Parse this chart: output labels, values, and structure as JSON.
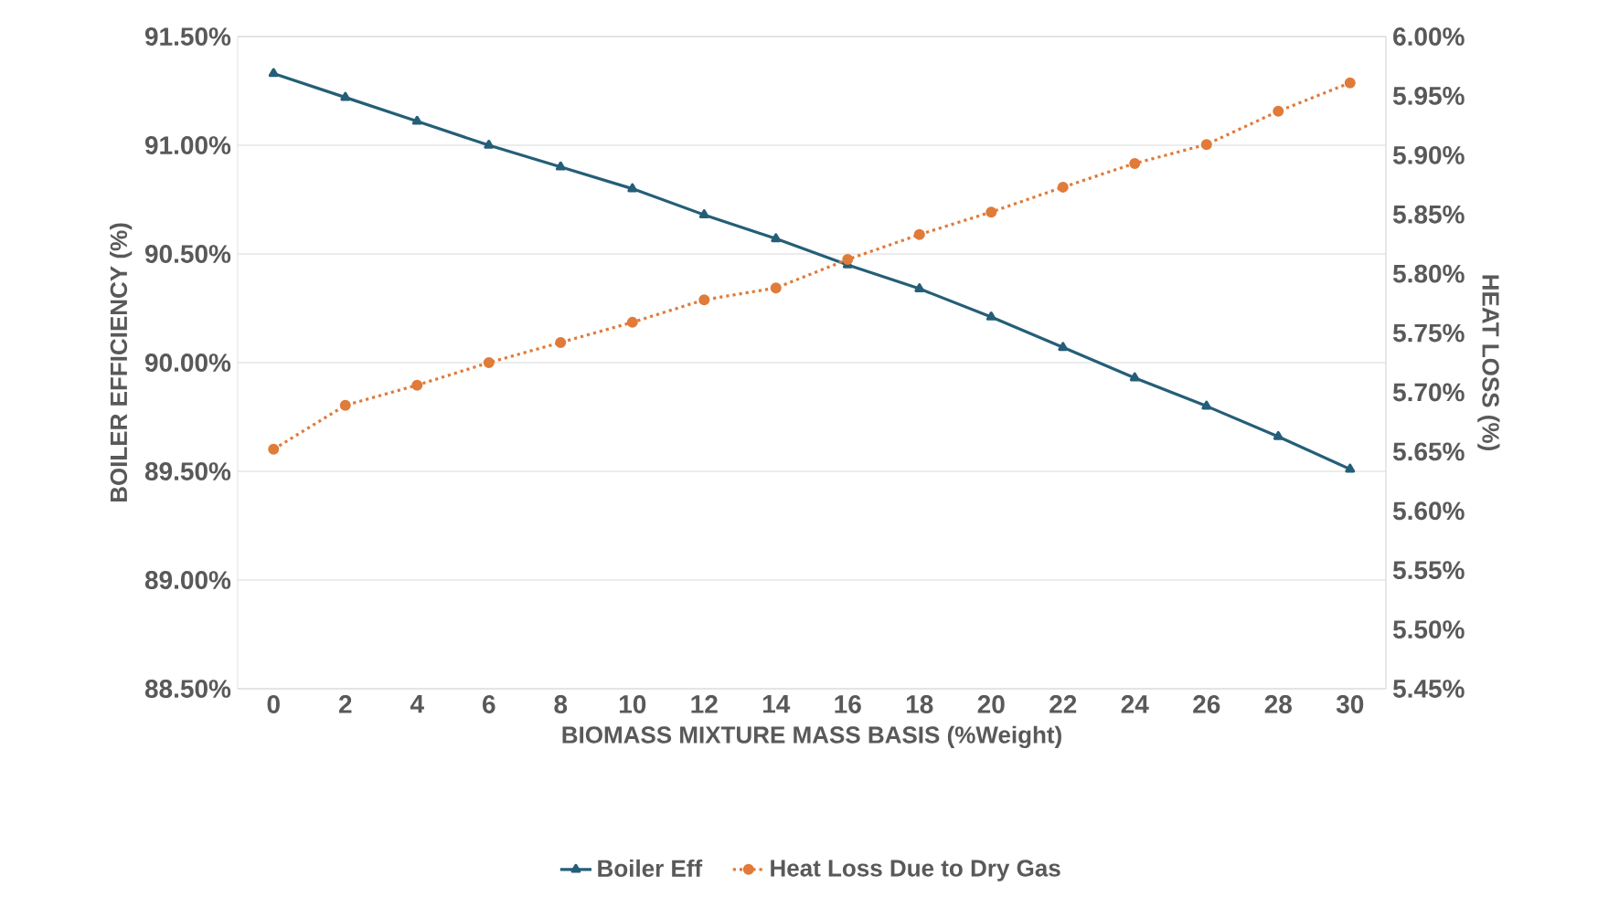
{
  "chart_data": {
    "type": "line",
    "xlabel": "BIOMASS MIXTURE MASS BASIS (%Weight)",
    "ylabel": "BOILER EFFICIENCY (%)",
    "y2label": "HEAT LOSS (%)",
    "categories": [
      "0",
      "2",
      "4",
      "6",
      "8",
      "10",
      "12",
      "14",
      "16",
      "18",
      "20",
      "22",
      "24",
      "26",
      "28",
      "30"
    ],
    "series": [
      {
        "name": "Boiler Eff",
        "color": "#255e78",
        "marker": "triangle",
        "line_style": "solid",
        "values": [
          91.33,
          91.22,
          91.11,
          91.0,
          90.9,
          90.8,
          90.68,
          90.57,
          90.45,
          90.34,
          90.21,
          90.07,
          89.93,
          89.8,
          89.66,
          89.51
        ]
      },
      {
        "name": "Heat Loss Due to Dry Gas",
        "color": "#e07b39",
        "marker": "circle",
        "line_style": "dotted",
        "axis": "y2",
        "values": [
          5.652,
          5.689,
          5.706,
          5.725,
          5.742,
          5.759,
          5.778,
          5.788,
          5.812,
          5.833,
          5.852,
          5.873,
          5.893,
          5.909,
          5.937,
          5.961
        ]
      }
    ],
    "ylim": [
      88.5,
      91.5
    ],
    "yticks": [
      {
        "value": 88.5,
        "label": "88.50%"
      },
      {
        "value": 89.0,
        "label": "89.00%"
      },
      {
        "value": 89.5,
        "label": "89.50%"
      },
      {
        "value": 90.0,
        "label": "90.00%"
      },
      {
        "value": 90.5,
        "label": "90.50%"
      },
      {
        "value": 91.0,
        "label": "91.00%"
      },
      {
        "value": 91.5,
        "label": "91.50%"
      }
    ],
    "y2lim": [
      5.45,
      6.0
    ],
    "y2ticks": [
      {
        "value": 5.45,
        "label": "5.45%"
      },
      {
        "value": 5.5,
        "label": "5.50%"
      },
      {
        "value": 5.55,
        "label": "5.55%"
      },
      {
        "value": 5.6,
        "label": "5.60%"
      },
      {
        "value": 5.65,
        "label": "5.65%"
      },
      {
        "value": 5.7,
        "label": "5.70%"
      },
      {
        "value": 5.75,
        "label": "5.75%"
      },
      {
        "value": 5.8,
        "label": "5.80%"
      },
      {
        "value": 5.85,
        "label": "5.85%"
      },
      {
        "value": 5.9,
        "label": "5.90%"
      },
      {
        "value": 5.95,
        "label": "5.95%"
      },
      {
        "value": 6.0,
        "label": "6.00%"
      }
    ],
    "grid": "y",
    "legend": "bottom"
  }
}
